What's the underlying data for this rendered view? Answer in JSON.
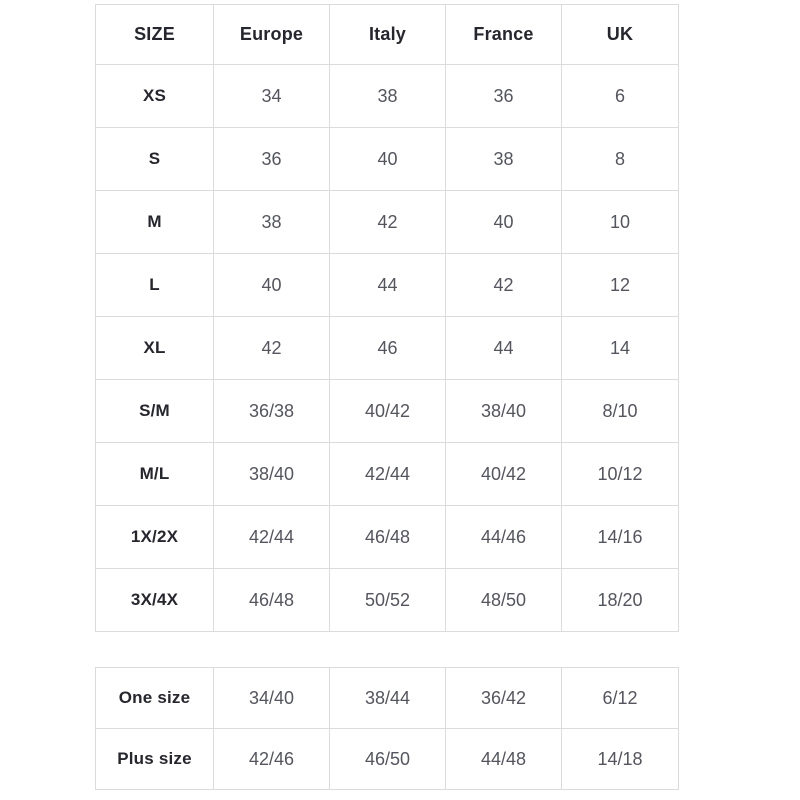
{
  "colors": {
    "background": "#ffffff",
    "cell_border": "#dbdbdb",
    "header_text": "#26262e",
    "value_text": "#54555e"
  },
  "chart_data": [
    {
      "type": "table",
      "name": "international-size-conversion",
      "columns": [
        "SIZE",
        "Europe",
        "Italy",
        "France",
        "UK"
      ],
      "rows": [
        {
          "label": "XS",
          "values": [
            "34",
            "38",
            "36",
            "6"
          ]
        },
        {
          "label": "S",
          "values": [
            "36",
            "40",
            "38",
            "8"
          ]
        },
        {
          "label": "M",
          "values": [
            "38",
            "42",
            "40",
            "10"
          ]
        },
        {
          "label": "L",
          "values": [
            "40",
            "44",
            "42",
            "12"
          ]
        },
        {
          "label": "XL",
          "values": [
            "42",
            "46",
            "44",
            "14"
          ]
        },
        {
          "label": "S/M",
          "values": [
            "36/38",
            "40/42",
            "38/40",
            "8/10"
          ]
        },
        {
          "label": "M/L",
          "values": [
            "38/40",
            "42/44",
            "40/42",
            "10/12"
          ]
        },
        {
          "label": "1X/2X",
          "values": [
            "42/44",
            "46/48",
            "44/46",
            "14/16"
          ]
        },
        {
          "label": "3X/4X",
          "values": [
            "46/48",
            "50/52",
            "48/50",
            "18/20"
          ]
        }
      ]
    },
    {
      "type": "table",
      "name": "special-sizes",
      "columns": [],
      "rows": [
        {
          "label": "One size",
          "values": [
            "34/40",
            "38/44",
            "36/42",
            "6/12"
          ]
        },
        {
          "label": "Plus size",
          "values": [
            "42/46",
            "46/50",
            "44/48",
            "14/18"
          ]
        }
      ]
    }
  ]
}
